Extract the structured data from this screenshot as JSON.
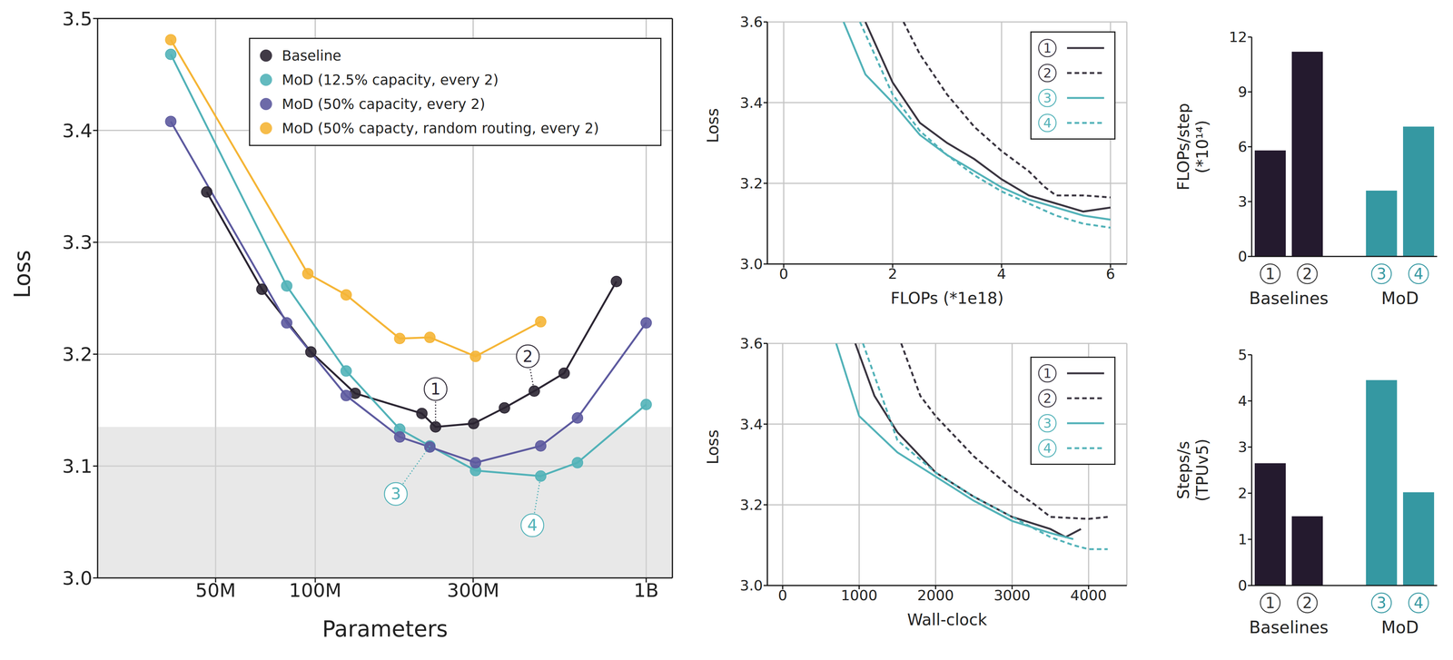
{
  "chart_data": [
    {
      "type": "line",
      "x_label": "Parameters",
      "y_label": "Loss",
      "log": "x",
      "grid": true,
      "legend": "upper right",
      "marker": "circle",
      "xlim": [
        22000000,
        1200000000
      ],
      "xticks": [
        {
          "value": 50000000,
          "label": "50M"
        },
        {
          "value": 100000000,
          "label": "100M"
        },
        {
          "value": 300000000,
          "label": "300M"
        },
        {
          "value": 1000000000,
          "label": "1B"
        }
      ],
      "ylim": [
        3.0,
        3.5
      ],
      "yticks": [
        {
          "value": 3.0,
          "label": "3.0"
        },
        3.1,
        3.2,
        3.3,
        3.4,
        3.5
      ],
      "shaded_region": [
        3.0,
        3.135
      ],
      "series": [
        {
          "name": "Baseline",
          "color": "#2b2532",
          "x": [
            47000000,
            69000000,
            97000000,
            132000000,
            210000000,
            231000000,
            301000000,
            373000000,
            459000000,
            565000000,
            813000000
          ],
          "values": [
            3.345,
            3.258,
            3.202,
            3.165,
            3.147,
            3.135,
            3.138,
            3.152,
            3.167,
            3.183,
            3.265
          ]
        },
        {
          "name": "MoD (12.5% capacity, every 2)",
          "color": "#52b2b8",
          "x": [
            36600000,
            82000000,
            124000000,
            180000000,
            222000000,
            305000000,
            480000000,
            620000000,
            1000000000
          ],
          "values": [
            3.468,
            3.261,
            3.185,
            3.133,
            3.118,
            3.096,
            3.091,
            3.103,
            3.155
          ]
        },
        {
          "name": "MoD (50% capacity, every 2)",
          "color": "#5d5a9f",
          "x": [
            36600000,
            82000000,
            124000000,
            180000000,
            222000000,
            305000000,
            480000000,
            620000000,
            1000000000
          ],
          "values": [
            3.408,
            3.228,
            3.163,
            3.126,
            3.117,
            3.103,
            3.118,
            3.143,
            3.228
          ]
        },
        {
          "name": "MoD (50% capacty, random routing, every 2)",
          "color": "#f5b536",
          "x": [
            36600000,
            95000000,
            124000000,
            180000000,
            222000000,
            305000000,
            480000000
          ],
          "values": [
            3.481,
            3.272,
            3.253,
            3.214,
            3.215,
            3.198,
            3.229
          ]
        }
      ],
      "annotations": [
        {
          "text": "1",
          "x": 231000000,
          "y": 3.135,
          "color": "#2b2532"
        },
        {
          "text": "2",
          "x": 459000000,
          "y": 3.167,
          "color": "#2b2532"
        },
        {
          "text": "3",
          "x": 222000000,
          "y": 3.118,
          "color": "#52b2b8"
        },
        {
          "text": "4",
          "x": 480000000,
          "y": 3.091,
          "color": "#52b2b8"
        }
      ]
    },
    {
      "type": "line",
      "x_label": "FLOPs (*1e18)",
      "y_label": "Loss",
      "grid": true,
      "legend": "upper right",
      "xlim": [
        -0.3,
        6.3
      ],
      "xticks": [
        0,
        2,
        4,
        6
      ],
      "ylim": [
        3.0,
        3.6
      ],
      "yticks": [
        {
          "value": 3.0,
          "label": "3.0"
        },
        3.2,
        3.4,
        3.6
      ],
      "series": [
        {
          "name": "1",
          "color": "#3a3540",
          "line_style": "solid",
          "x": [
            1.5,
            2,
            2.5,
            3,
            3.5,
            4,
            4.5,
            5,
            5.5,
            6
          ],
          "values": [
            3.6,
            3.45,
            3.35,
            3.3,
            3.26,
            3.21,
            3.17,
            3.15,
            3.13,
            3.14
          ]
        },
        {
          "name": "2",
          "color": "#3a3540",
          "line_style": "dashed",
          "x": [
            2.2,
            2.5,
            3,
            3.5,
            4,
            4.5,
            4.8,
            5,
            5.5,
            6
          ],
          "values": [
            3.6,
            3.52,
            3.42,
            3.34,
            3.28,
            3.23,
            3.19,
            3.17,
            3.17,
            3.165
          ]
        },
        {
          "name": "3",
          "color": "#52b2b8",
          "line_style": "solid",
          "x": [
            1.1,
            1.5,
            2,
            2.5,
            3,
            3.5,
            4,
            4.5,
            5,
            5.5,
            6
          ],
          "values": [
            3.6,
            3.47,
            3.4,
            3.32,
            3.27,
            3.23,
            3.19,
            3.16,
            3.14,
            3.12,
            3.11
          ]
        },
        {
          "name": "4",
          "color": "#52b2b8",
          "line_style": "dashed",
          "x": [
            1.4,
            2,
            2.5,
            3,
            3.5,
            4,
            4.5,
            5,
            5.5,
            6
          ],
          "values": [
            3.6,
            3.42,
            3.33,
            3.27,
            3.22,
            3.18,
            3.15,
            3.12,
            3.1,
            3.09
          ]
        }
      ]
    },
    {
      "type": "line",
      "x_label": "Wall-clock",
      "y_label": "Loss",
      "grid": true,
      "legend": "upper right",
      "xlim": [
        -200,
        4500
      ],
      "xticks": [
        0,
        1000,
        2000,
        3000,
        4000
      ],
      "ylim": [
        3.0,
        3.6
      ],
      "yticks": [
        {
          "value": 3.0,
          "label": "3.0"
        },
        3.2,
        3.4,
        3.6
      ],
      "series": [
        {
          "name": "1",
          "color": "#3a3540",
          "line_style": "solid",
          "x": [
            950,
            1200,
            1500,
            2000,
            2500,
            3000,
            3500,
            3700,
            3900
          ],
          "values": [
            3.6,
            3.47,
            3.38,
            3.28,
            3.22,
            3.17,
            3.14,
            3.12,
            3.14
          ]
        },
        {
          "name": "2",
          "color": "#3a3540",
          "line_style": "dashed",
          "x": [
            1550,
            1800,
            2000,
            2500,
            3000,
            3300,
            3500,
            4000,
            4250
          ],
          "values": [
            3.6,
            3.47,
            3.42,
            3.32,
            3.24,
            3.2,
            3.17,
            3.165,
            3.17
          ]
        },
        {
          "name": "3",
          "color": "#52b2b8",
          "line_style": "solid",
          "x": [
            700,
            1000,
            1500,
            2000,
            2500,
            3000,
            3500,
            3800
          ],
          "values": [
            3.6,
            3.42,
            3.33,
            3.27,
            3.21,
            3.16,
            3.13,
            3.115
          ]
        },
        {
          "name": "4",
          "color": "#52b2b8",
          "line_style": "dashed",
          "x": [
            1050,
            1500,
            2000,
            2500,
            3000,
            3500,
            3800,
            4000,
            4250
          ],
          "values": [
            3.6,
            3.36,
            3.28,
            3.22,
            3.17,
            3.12,
            3.1,
            3.09,
            3.09
          ]
        }
      ]
    },
    {
      "type": "bar",
      "y_label": [
        "FLOPs/step",
        "(*10¹⁴)"
      ],
      "grid": false,
      "categories": [
        "1",
        "2",
        null,
        "3",
        "4"
      ],
      "values": [
        5.8,
        11.2,
        null,
        3.6,
        7.1
      ],
      "colors": [
        "#241a2e",
        "#241a2e",
        null,
        "#3598a2",
        "#3598a2"
      ],
      "groups": [
        {
          "label": "Baselines",
          "categories": [
            "1",
            "2"
          ]
        },
        {
          "label": "MoD",
          "categories": [
            "3",
            "4"
          ]
        }
      ],
      "ylim": [
        0,
        12
      ],
      "yticks": [
        0,
        3,
        6,
        9,
        12
      ]
    },
    {
      "type": "bar",
      "y_label": [
        "Steps/s",
        "(TPUv5)"
      ],
      "grid": false,
      "categories": [
        "1",
        "2",
        null,
        "3",
        "4"
      ],
      "values": [
        2.65,
        1.5,
        null,
        4.45,
        2.02
      ],
      "colors": [
        "#241a2e",
        "#241a2e",
        null,
        "#3598a2",
        "#3598a2"
      ],
      "groups": [
        {
          "label": "Baselines",
          "categories": [
            "1",
            "2"
          ]
        },
        {
          "label": "MoD",
          "categories": [
            "3",
            "4"
          ]
        }
      ],
      "ylim": [
        0,
        5
      ],
      "yticks": [
        0,
        1,
        2,
        3,
        4,
        5
      ]
    }
  ]
}
